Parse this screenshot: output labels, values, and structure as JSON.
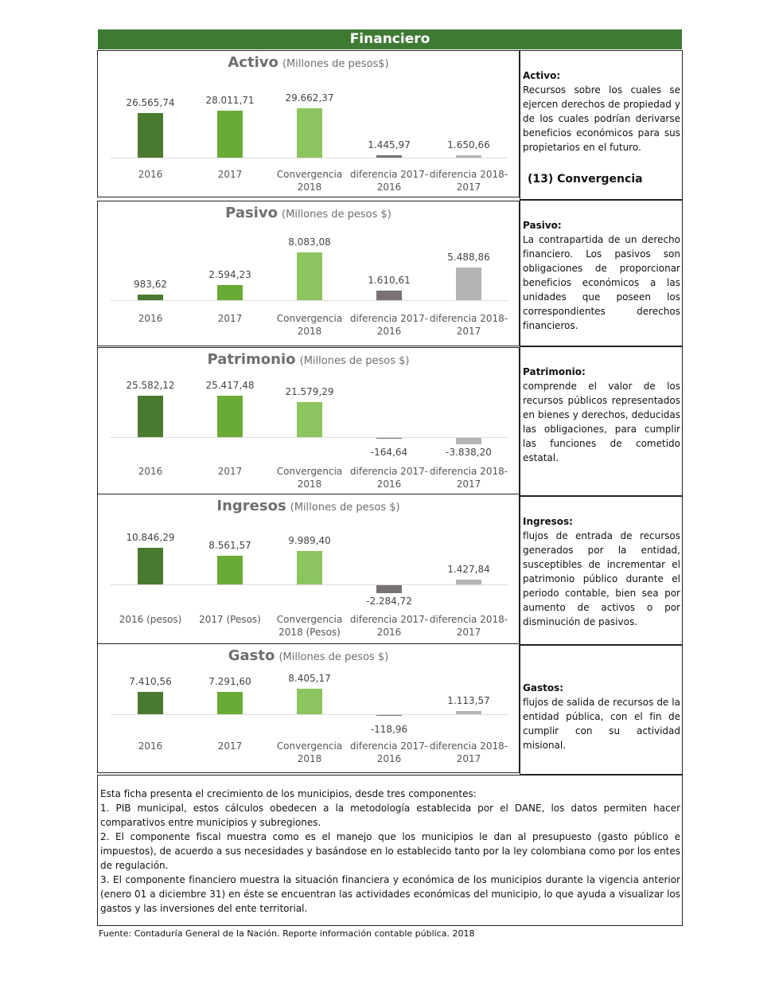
{
  "header": {
    "title": "Financiero"
  },
  "chart_data": [
    {
      "type": "bar",
      "title": "Activo",
      "subtitle": "(Millones de pesos$)",
      "categories": [
        "2016",
        "2017",
        "Convergencia 2018",
        "diferencia 2017-2016",
        "diferencia 2018-2017"
      ],
      "values": [
        26565.74,
        28011.71,
        29662.37,
        1445.97,
        1650.66
      ],
      "value_labels": [
        "26.565,74",
        "28.011,71",
        "29.662,37",
        "1.445,97",
        "1.650,66"
      ],
      "colors": [
        "#4a7a2f",
        "#6aab35",
        "#8cc560",
        "#7a7272",
        "#b4b4b4"
      ]
    },
    {
      "type": "bar",
      "title": "Pasivo",
      "subtitle": "(Millones de pesos $)",
      "categories": [
        "2016",
        "2017",
        "Convergencia 2018",
        "diferencia 2017-2016",
        "diferencia 2018-2017"
      ],
      "values": [
        983.62,
        2594.23,
        8083.08,
        1610.61,
        5488.86
      ],
      "value_labels": [
        "983,62",
        "2.594,23",
        "8.083,08",
        "1.610,61",
        "5.488,86"
      ],
      "colors": [
        "#4a7a2f",
        "#6aab35",
        "#8cc560",
        "#7a7272",
        "#b4b4b4"
      ]
    },
    {
      "type": "bar",
      "title": "Patrimonio",
      "subtitle": "(Millones de pesos $)",
      "categories": [
        "2016",
        "2017",
        "Convergencia 2018",
        "diferencia 2017-2016",
        "diferencia 2018-2017"
      ],
      "values": [
        25582.12,
        25417.48,
        21579.29,
        -164.64,
        -3838.2
      ],
      "value_labels": [
        "25.582,12",
        "25.417,48",
        "21.579,29",
        "-164,64",
        "-3.838,20"
      ],
      "colors": [
        "#4a7a2f",
        "#6aab35",
        "#8cc560",
        "#7a7272",
        "#b4b4b4"
      ]
    },
    {
      "type": "bar",
      "title": "Ingresos",
      "subtitle": "(Millones de pesos $)",
      "categories": [
        "2016 (pesos)",
        "2017 (Pesos)",
        "Convergencia 2018 (Pesos)",
        "diferencia 2017-2016",
        "diferencia 2018-2017"
      ],
      "values": [
        10846.29,
        8561.57,
        9989.4,
        -2284.72,
        1427.84
      ],
      "value_labels": [
        "10.846,29",
        "8.561,57",
        "9.989,40",
        "-2.284,72",
        "1.427,84"
      ],
      "colors": [
        "#4a7a2f",
        "#6aab35",
        "#8cc560",
        "#7a7272",
        "#b4b4b4"
      ]
    },
    {
      "type": "bar",
      "title": "Gasto",
      "subtitle": "(Millones de pesos $)",
      "categories": [
        "2016",
        "2017",
        "Convergencia 2018",
        "diferencia 2017-2016",
        "diferencia 2018-2017"
      ],
      "values": [
        7410.56,
        7291.6,
        8405.17,
        -118.96,
        1113.57
      ],
      "value_labels": [
        "7.410,56",
        "7.291,60",
        "8.405,17",
        "-118,96",
        "1.113,57"
      ],
      "colors": [
        "#4a7a2f",
        "#6aab35",
        "#8cc560",
        "#7a7272",
        "#b4b4b4"
      ]
    }
  ],
  "definitions": [
    {
      "term": "Activo:",
      "text": "Recursos sobre los cuales se ejercen derechos de propiedad y de los cuales podrían derivarse beneficios económicos para sus propietarios en el futuro.",
      "note": "(13) Convergencia"
    },
    {
      "term": "Pasivo:",
      "text": "La contrapartida de un derecho financiero. Los pasivos son obligaciones de proporcionar beneficios económicos a las unidades que poseen los correspondientes derechos financieros."
    },
    {
      "term": "Patrimonio:",
      "text": "comprende el valor de los recursos públicos representados en bienes y derechos, deducidas las obligaciones, para cumplir las funciones de cometido estatal."
    },
    {
      "term": "Ingresos:",
      "text": "flujos de entrada de recursos generados por la entidad, susceptibles de incrementar el patrimonio público durante el periodo contable, bien sea por aumento de activos o por disminución de pasivos."
    },
    {
      "term": "Gastos:",
      "text": "flujos de salida de recursos de la entidad pública, con el fin de cumplir con su actividad misional."
    }
  ],
  "notes": {
    "intro": "Esta ficha presenta el crecimiento de los municipios, desde tres componentes:",
    "items": [
      "1.   PIB municipal, estos cálculos obedecen a la metodología establecida por el DANE, los datos permiten hacer comparativos entre municipios y subregiones.",
      "2.   El componente fiscal muestra como es el manejo que los municipios le dan al presupuesto (gasto público e impuestos), de acuerdo a sus necesidades y basándose en  lo establecido tanto por la ley colombiana como por los entes de regulación.",
      "3.   El componente financiero muestra la situación financiera y económica de los municipios durante la vigencia anterior (enero 01 a diciembre 31) en éste  se encuentran las actividades económicas del municipio, lo que ayuda a visualizar los gastos y las inversiones del ente territorial."
    ]
  },
  "source": "Fuente: Contaduría General de la Nación. Reporte información contable pública. 2018"
}
